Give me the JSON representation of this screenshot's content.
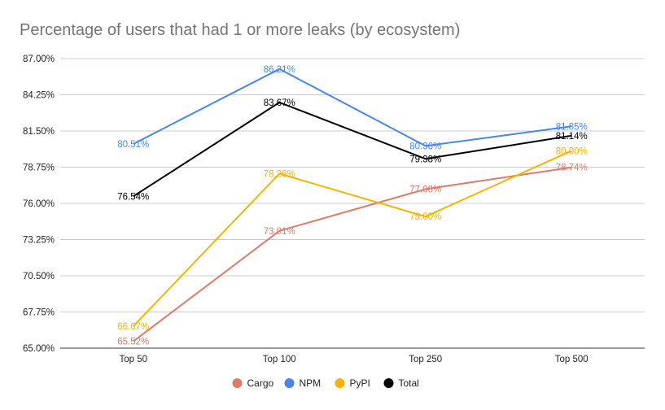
{
  "chart_data": {
    "type": "line",
    "title": "Percentage of users that had 1 or more leaks (by ecosystem)",
    "xlabel": "",
    "ylabel": "",
    "categories": [
      "Top 50",
      "Top 100",
      "Top 250",
      "Top 500"
    ],
    "ylim": [
      65,
      87
    ],
    "y_ticks": [
      "65.00%",
      "67.75%",
      "70.50%",
      "73.25%",
      "76.00%",
      "78.75%",
      "81.50%",
      "84.25%",
      "87.00%"
    ],
    "grid": true,
    "legend_position": "bottom",
    "series": [
      {
        "name": "Cargo",
        "color": "#DB7C6A",
        "values": [
          65.52,
          73.91,
          77.08,
          78.74
        ],
        "labels": [
          "65.52%",
          "73.91%",
          "77.08%",
          "78.74%"
        ]
      },
      {
        "name": "NPM",
        "color": "#4A86E8",
        "values": [
          80.51,
          86.21,
          80.36,
          81.85
        ],
        "labels": [
          "80.51%",
          "86.21%",
          "80.36%",
          "81.85%"
        ]
      },
      {
        "name": "PyPI",
        "color": "#F4B400",
        "values": [
          66.67,
          78.26,
          75.0,
          80.0
        ],
        "labels": [
          "66.67%",
          "78.26%",
          "75.00%",
          "80.00%"
        ]
      },
      {
        "name": "Total",
        "color": "#000000",
        "values": [
          76.54,
          83.67,
          79.38,
          81.14
        ],
        "labels": [
          "76.54%",
          "83.67%",
          "79.38%",
          "81.14%"
        ]
      }
    ]
  }
}
